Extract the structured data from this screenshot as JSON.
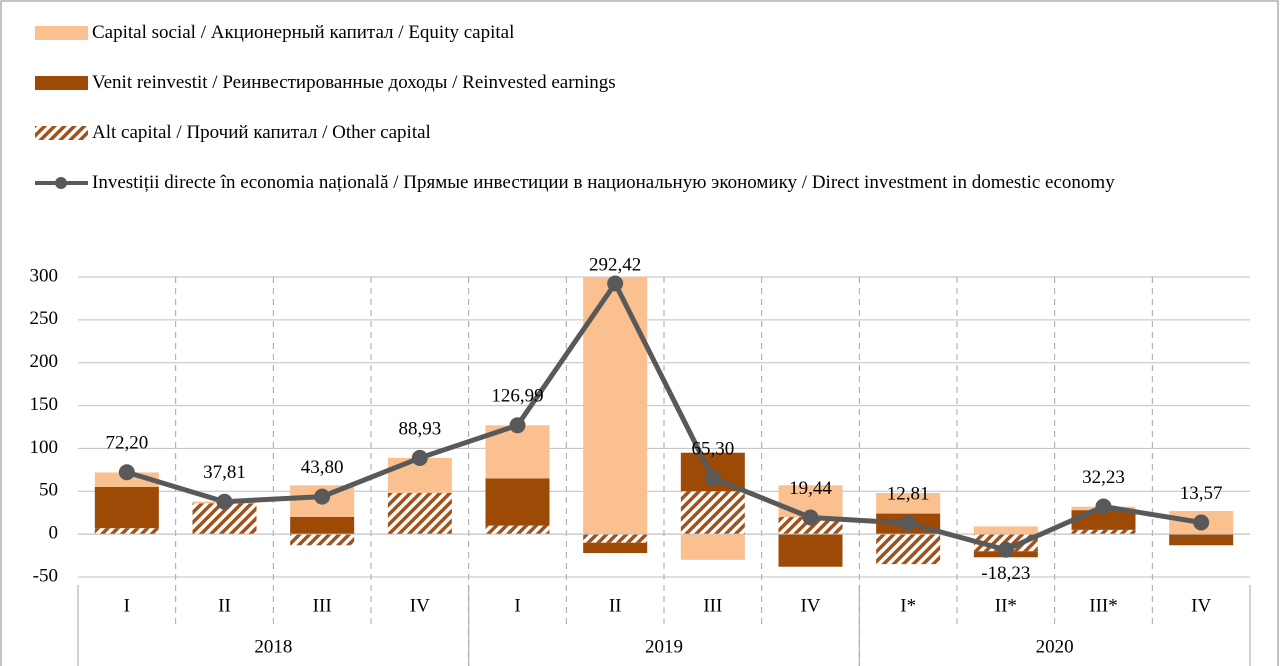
{
  "chart_data": {
    "type": "bar",
    "categories": [
      "I",
      "II",
      "III",
      "IV",
      "I",
      "II",
      "III",
      "IV",
      "I*",
      "II*",
      "III*",
      "IV"
    ],
    "groups": [
      "2018",
      "2019",
      "2020"
    ],
    "series": [
      {
        "name": "Capital social / Акционерный капитал / Equity capital",
        "color": "#fac090",
        "values": [
          17,
          2,
          37,
          41,
          62,
          314,
          -30,
          37,
          24,
          9,
          4,
          27
        ]
      },
      {
        "name": "Venit reinvestit / Реинвестированные доходы / Reinvested earnings",
        "color": "#9c4a06",
        "values": [
          48,
          0,
          20,
          0,
          55,
          -12,
          45,
          -38,
          24,
          -7,
          23,
          -13
        ]
      },
      {
        "name": "Alt capital / Прочий капитал / Other capital",
        "color": "#a0521d",
        "pattern": "hatch",
        "values": [
          7,
          36,
          -13,
          48,
          10,
          -10,
          50,
          20,
          -35,
          -20,
          5,
          0
        ]
      },
      {
        "name": "Investiții directe în economia națională / Прямые инвестиции в национальную экономику / Direct investment in domestic economy",
        "type": "line",
        "color": "#595959",
        "values": [
          72.2,
          37.81,
          43.8,
          88.93,
          126.99,
          292.42,
          65.3,
          19.44,
          12.81,
          -18.23,
          32.23,
          13.57
        ],
        "value_labels": [
          "72,20",
          "37,81",
          "43,80",
          "88,93",
          "126,99",
          "292,42",
          "65,30",
          "19,44",
          "12,81",
          "-18,23",
          "32,23",
          "13,57"
        ]
      }
    ],
    "ylim": [
      -50,
      300
    ],
    "yticks": [
      -50,
      0,
      50,
      100,
      150,
      200,
      250,
      300
    ],
    "grid": true
  }
}
